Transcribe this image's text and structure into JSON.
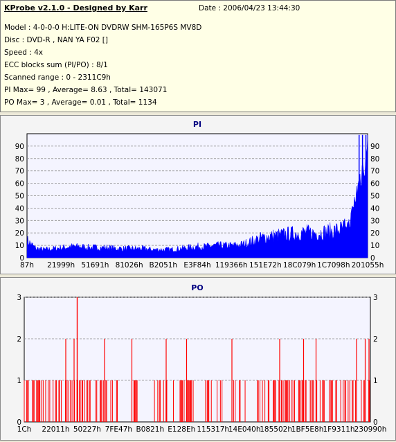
{
  "info": {
    "title": "KProbe v2.1.0 - Designed by Karr",
    "date": "Date : 2006/04/23 13:44:30",
    "lines": [
      "Model : 4-0-0-0 H:LITE-ON DVDRW SHM-165P6S MV8D",
      "Disc : DVD-R , NAN YA F02 []",
      "Speed : 4x",
      "ECC blocks sum (PI/PO) : 8/1",
      "Scanned range : 0 - 2311C9h",
      "PI Max= 99 , Average= 8.63 , Total= 143071",
      "PO Max= 3 , Average= 0.01 , Total= 1134"
    ]
  },
  "colors": {
    "pi": "#0000ff",
    "po": "#ff0000",
    "title": "#000080",
    "plot_bg": "#f4f4ff"
  },
  "chart_data": [
    {
      "type": "area",
      "title": "PI",
      "ylim": [
        0,
        100
      ],
      "yticks": [
        0,
        10,
        20,
        30,
        40,
        50,
        60,
        70,
        80,
        90
      ],
      "x_tick_labels": [
        "87h",
        "21999h",
        "51691h",
        "81026h",
        "B2051h",
        "E3F84h",
        "119366h",
        "151E72h",
        "18C079h",
        "1C7098h",
        "201055h"
      ],
      "grid": true,
      "series": [
        {
          "values": [
            17,
            9,
            8,
            9,
            10,
            11,
            11,
            10,
            10,
            10,
            9,
            9,
            9,
            9,
            8,
            8,
            8,
            9,
            10,
            11,
            11,
            12,
            12,
            12,
            13,
            16,
            19,
            21,
            22,
            23,
            24,
            25,
            24,
            25,
            26,
            28,
            30,
            65,
            95
          ],
          "max": 99
        }
      ]
    },
    {
      "type": "bar",
      "title": "PO",
      "ylim": [
        0,
        3
      ],
      "yticks": [
        0,
        1,
        2,
        3
      ],
      "x_tick_labels": [
        "1Ch",
        "22011h",
        "50227h",
        "7FE47h",
        "B0821h",
        "E128Eh",
        "115317h",
        "14E040h",
        "185502h",
        "1BF5E8h",
        "1F9311h",
        "230990h"
      ],
      "grid": true,
      "spikes_3": [
        0.153
      ],
      "spikes_2": [
        0.12,
        0.144,
        0.232,
        0.311,
        0.41,
        0.469,
        0.6,
        0.738,
        0.807,
        0.843,
        0.96,
        0.985,
        0.996
      ]
    }
  ]
}
